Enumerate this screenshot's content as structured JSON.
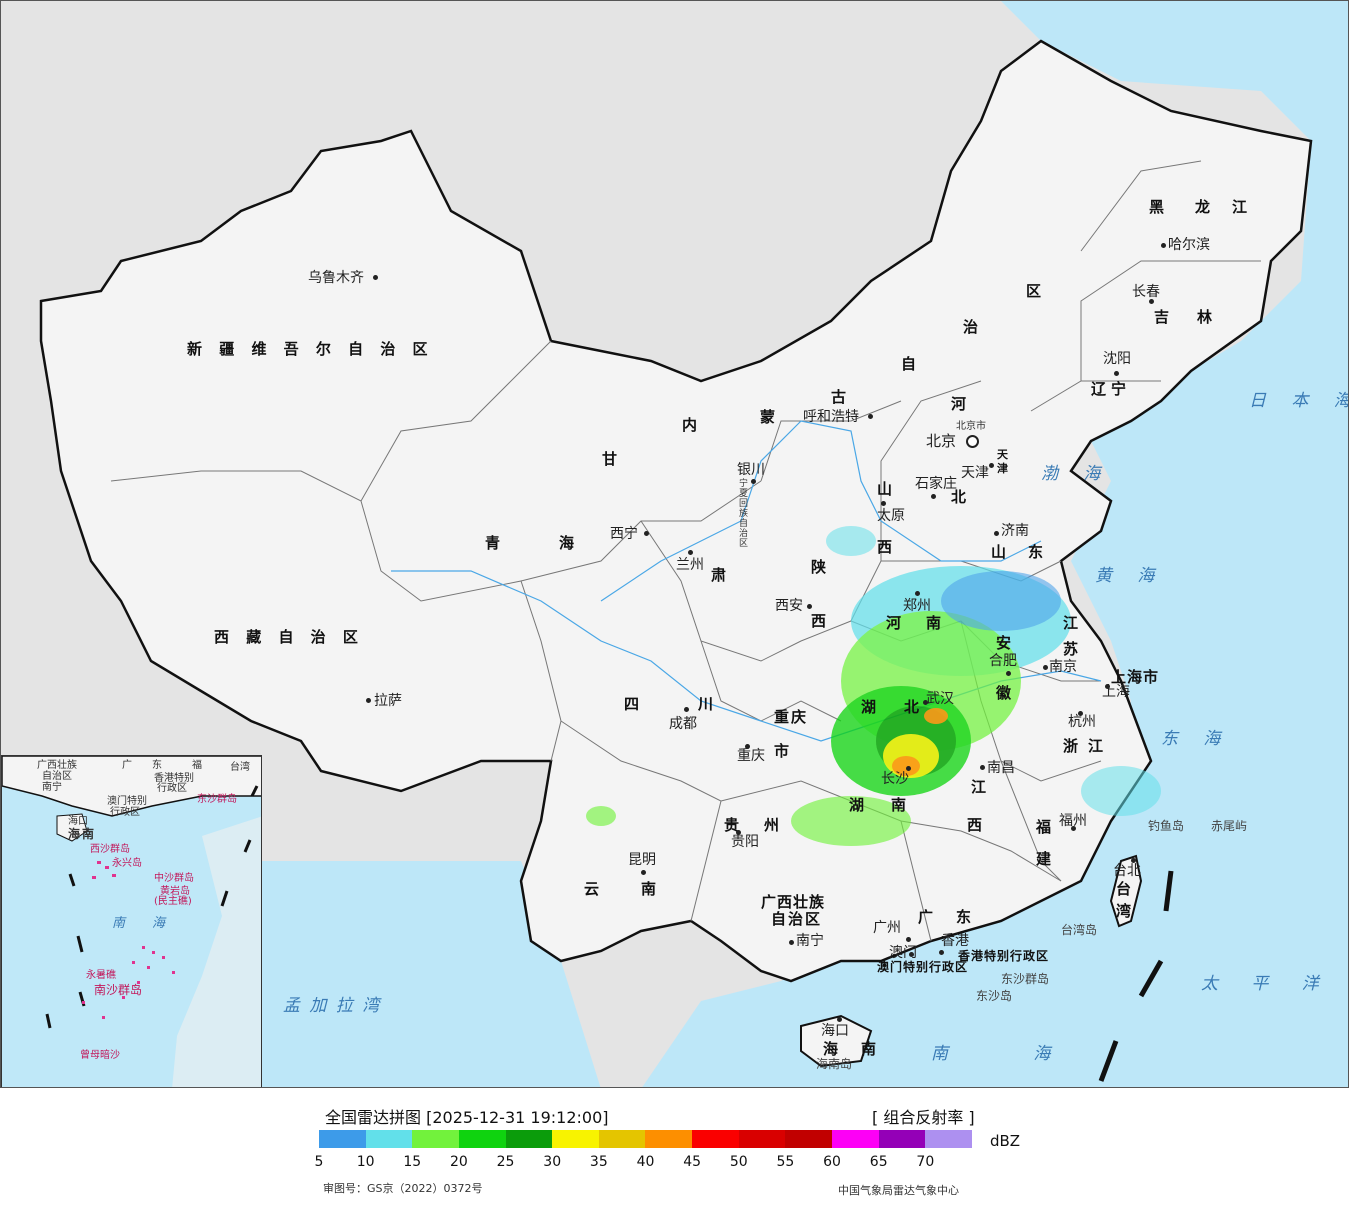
{
  "map": {
    "province_labels": [
      "新 疆 维 吾 尔 自 治 区",
      "西 藏 自 治 区",
      "青",
      "海",
      "甘",
      "肃",
      "内",
      "蒙",
      "古",
      "自",
      "治",
      "区",
      "黑",
      "龙",
      "江",
      "吉",
      "林",
      "辽",
      "宁",
      "河",
      "北",
      "山",
      "西",
      "山",
      "东",
      "河",
      "南",
      "陕",
      "西",
      "四",
      "川",
      "重庆",
      "市",
      "湖",
      "北",
      "湖",
      "南",
      "安",
      "徽",
      "江",
      "苏",
      "浙",
      "江",
      "江",
      "西",
      "福",
      "建",
      "贵",
      "州",
      "云",
      "南",
      "广",
      "东",
      "广西壮族",
      "自治区",
      "海",
      "南",
      "上海市",
      "台",
      "湾",
      "宁夏回族自治区",
      "天",
      "津"
    ],
    "city_labels": [
      "乌鲁木齐",
      "拉萨",
      "西宁",
      "兰州",
      "银川",
      "呼和浩特",
      "北京",
      "北京市",
      "天津",
      "石家庄",
      "太原",
      "济南",
      "郑州",
      "西安",
      "成都",
      "重庆",
      "武汉",
      "合肥",
      "南京",
      "上海",
      "杭州",
      "南昌",
      "长沙",
      "福州",
      "台北",
      "贵阳",
      "昆明",
      "南宁",
      "广州",
      "澳门",
      "香港",
      "海口",
      "沈阳",
      "长春",
      "哈尔滨"
    ],
    "sea_labels": [
      "日 本 海",
      "渤 海",
      "黄 海",
      "东 海",
      "太 平 洋",
      "南 海",
      "孟 加 拉 湾"
    ],
    "island_labels": [
      "钓鱼岛",
      "赤尾屿",
      "台湾岛",
      "东沙群岛",
      "东沙岛",
      "海南岛",
      "香港特别行政区",
      "澳门特别行政区"
    ],
    "inset_labels": [
      "广西壮族",
      "自治区",
      "南宁",
      "广",
      "东",
      "福",
      "台湾",
      "香港特别",
      "行政区",
      "澳门特别",
      "行政区",
      "东沙群岛",
      "海口",
      "海",
      "南",
      "西沙群岛",
      "永兴岛",
      "中沙群岛",
      "黄岩岛",
      "(民主礁)",
      "南",
      "海",
      "南沙群岛",
      "永暑礁",
      "曾母暗沙"
    ]
  },
  "legend": {
    "title": "全国雷达拼图 [2025-12-31 19:12:00]",
    "product": "[ 组合反射率 ]",
    "unit": "dBZ",
    "ticks": [
      "5",
      "10",
      "15",
      "20",
      "25",
      "30",
      "35",
      "40",
      "45",
      "50",
      "55",
      "60",
      "65",
      "70"
    ],
    "colors": [
      "#3d9be9",
      "#62e0ea",
      "#72f23c",
      "#0fd30f",
      "#0b9c0b",
      "#f8f300",
      "#e4c500",
      "#fd8f00",
      "#fa0000",
      "#d90000",
      "#c10000",
      "#fd00f6",
      "#9400b7",
      "#ad90f0"
    ],
    "approval": "审图号：GS京（2022）0372号",
    "source": "中国气象局雷达气象中心"
  }
}
